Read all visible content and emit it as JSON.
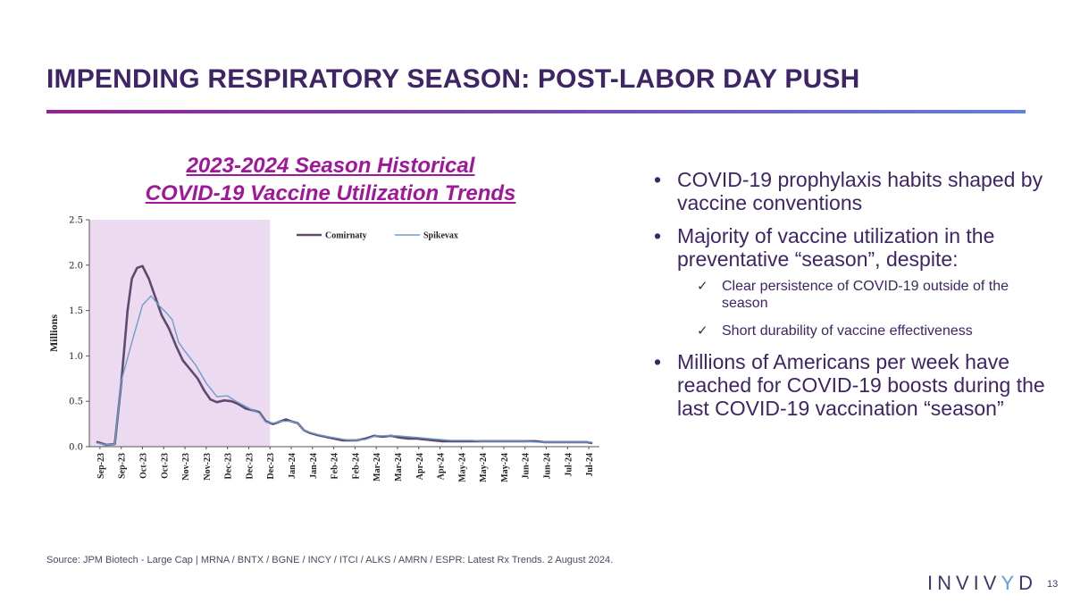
{
  "slide": {
    "title": "IMPENDING RESPIRATORY SEASON: POST-LABOR DAY PUSH",
    "chart_title_line1": "2023-2024 Season Historical",
    "chart_title_line2": "COVID-19 Vaccine Utilization Trends",
    "bullets": [
      {
        "text": "COVID-19 prophylaxis habits shaped by vaccine conventions"
      },
      {
        "text": "Majority of vaccine utilization in the preventative “season”, despite:",
        "subbullets": [
          "Clear persistence of COVID-19 outside of the season",
          "Short durability of vaccine effectiveness"
        ]
      },
      {
        "text": "Millions of Americans per week have reached for COVID-19 boosts during the last COVID-19 vaccination “season”"
      }
    ],
    "source": "Source: JPM Biotech - Large Cap | MRNA / BNTX / BGNE / INCY / ITCI / ALKS / AMRN / ESPR: Latest Rx Trends. 2 August 2024.",
    "logo_text": "INVIV",
    "logo_accent": "Y",
    "logo_tail": "D",
    "page_number": "13",
    "bullet_glyph": "•",
    "check_glyph": "✓"
  },
  "colors": {
    "title": "#3f2466",
    "accent": "#a0179a",
    "season_shade": "#ecdaf0",
    "comirnaty": "#5f4a6e",
    "spikevax": "#6f9dc8"
  },
  "chart_data": {
    "type": "line",
    "ylabel": "Millions",
    "ylim": [
      0,
      2.5
    ],
    "yticks": [
      "0.0",
      "0.5",
      "1.0",
      "1.5",
      "2.0",
      "2.5"
    ],
    "ytick_values": [
      0,
      0.5,
      1.0,
      1.5,
      2.0,
      2.5
    ],
    "categories": [
      "Sep-23",
      "Sep-23",
      "Oct-23",
      "Oct-23",
      "Nov-23",
      "Nov-23",
      "Dec-23",
      "Dec-23",
      "Dec-23",
      "Jan-24",
      "Jan-24",
      "Feb-24",
      "Feb-24",
      "Mar-24",
      "Mar-24",
      "Apr-24",
      "Apr-24",
      "May-24",
      "May-24",
      "May-24",
      "Jun-24",
      "Jun-24",
      "Jul-24",
      "Jul-24"
    ],
    "shaded_region": {
      "label": "season",
      "from_index": 0,
      "to_index": 8
    },
    "legend": [
      "Comirnaty",
      "Spikevax"
    ],
    "series": [
      {
        "name": "Comirnaty",
        "x": [
          -0.12,
          0.3,
          0.7,
          1.0,
          1.15,
          1.3,
          1.5,
          1.75,
          2.0,
          2.3,
          2.6,
          2.9,
          3.25,
          3.6,
          3.9,
          4.25,
          4.6,
          4.9,
          5.2,
          5.5,
          5.85,
          6.2,
          6.5,
          6.85,
          7.2,
          7.5,
          7.8,
          8.15,
          8.5,
          8.75,
          9.0,
          9.3,
          9.6,
          9.9,
          10.2,
          10.6,
          11.0,
          11.4,
          11.7,
          12.1,
          12.5,
          12.9,
          13.3,
          13.7,
          14.1,
          14.5,
          14.9,
          15.3,
          15.7,
          16.1,
          16.5,
          16.9,
          17.3,
          17.7,
          18.1,
          18.5,
          18.9,
          19.3,
          19.7,
          20.1,
          20.5,
          20.9,
          21.3,
          21.7,
          22.1,
          22.5,
          22.9,
          23.12
        ],
        "y": [
          0.05,
          0.02,
          0.03,
          0.7,
          1.1,
          1.5,
          1.85,
          1.97,
          1.99,
          1.85,
          1.65,
          1.45,
          1.3,
          1.1,
          0.95,
          0.85,
          0.75,
          0.62,
          0.52,
          0.49,
          0.51,
          0.5,
          0.47,
          0.42,
          0.4,
          0.38,
          0.28,
          0.25,
          0.28,
          0.3,
          0.28,
          0.26,
          0.18,
          0.15,
          0.13,
          0.11,
          0.09,
          0.07,
          0.07,
          0.07,
          0.09,
          0.12,
          0.11,
          0.12,
          0.1,
          0.09,
          0.09,
          0.08,
          0.07,
          0.06,
          0.06,
          0.06,
          0.06,
          0.06,
          0.06,
          0.06,
          0.06,
          0.06,
          0.06,
          0.06,
          0.06,
          0.05,
          0.05,
          0.05,
          0.05,
          0.05,
          0.05,
          0.04
        ]
      },
      {
        "name": "Spikevax",
        "x": [
          -0.12,
          0.3,
          0.7,
          1.0,
          1.5,
          2.0,
          2.4,
          2.8,
          3.1,
          3.4,
          3.7,
          4.0,
          4.5,
          5.0,
          5.5,
          6.0,
          6.4,
          6.8,
          7.2,
          7.5,
          7.8,
          8.2,
          8.5,
          8.75,
          9.0,
          9.3,
          9.6,
          10.0,
          10.5,
          11.0,
          11.5,
          12.0,
          12.5,
          13.0,
          13.5,
          14.0,
          14.5,
          15.0,
          15.5,
          16.0,
          16.5,
          17.0,
          17.5,
          18.0,
          18.5,
          19.0,
          19.5,
          20.0,
          20.5,
          21.0,
          21.5,
          22.0,
          22.5,
          23.12
        ],
        "y": [
          0.04,
          0.02,
          0.03,
          0.72,
          1.15,
          1.56,
          1.66,
          1.55,
          1.48,
          1.4,
          1.15,
          1.05,
          0.9,
          0.7,
          0.55,
          0.56,
          0.5,
          0.45,
          0.4,
          0.37,
          0.27,
          0.26,
          0.28,
          0.28,
          0.28,
          0.26,
          0.18,
          0.15,
          0.12,
          0.1,
          0.08,
          0.07,
          0.08,
          0.12,
          0.12,
          0.12,
          0.11,
          0.1,
          0.09,
          0.08,
          0.07,
          0.07,
          0.07,
          0.06,
          0.06,
          0.06,
          0.06,
          0.06,
          0.05,
          0.05,
          0.05,
          0.05,
          0.05,
          0.05
        ]
      }
    ]
  }
}
